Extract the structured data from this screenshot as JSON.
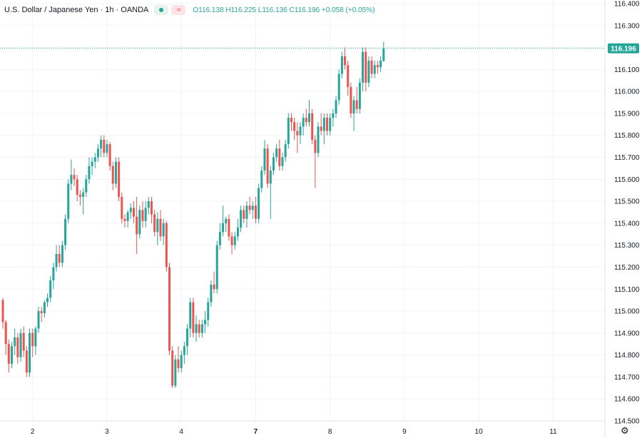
{
  "header": {
    "title": "U.S. Dollar / Japanese Yen · 1h · OANDA",
    "status_icon": "green-dot-icon",
    "indicator_icon": "wave-icon",
    "ohlc_text": "O116.138 H116.225 L116.136 C116.196 +0.058 (+0.05%)"
  },
  "chart_data": {
    "type": "candlestick",
    "symbol": "U.S. Dollar / Japanese Yen",
    "interval": "1h",
    "source": "OANDA",
    "ylim": [
      114.5,
      116.4
    ],
    "y_ticks": [
      "116.400",
      "116.300",
      "116.200",
      "116.100",
      "116.000",
      "115.900",
      "115.800",
      "115.700",
      "115.600",
      "115.500",
      "115.400",
      "115.300",
      "115.200",
      "115.100",
      "115.000",
      "114.900",
      "114.800",
      "114.700",
      "114.600",
      "114.500"
    ],
    "x_ticks": [
      {
        "label": "2",
        "index": 10,
        "bold": false
      },
      {
        "label": "3",
        "index": 35,
        "bold": false
      },
      {
        "label": "4",
        "index": 60,
        "bold": false
      },
      {
        "label": "7",
        "index": 85,
        "bold": true
      },
      {
        "label": "8",
        "index": 110,
        "bold": false
      },
      {
        "label": "9",
        "index": 135,
        "bold": false
      },
      {
        "label": "10",
        "index": 160,
        "bold": false
      },
      {
        "label": "11",
        "index": 185,
        "bold": false
      }
    ],
    "last_price": 116.196,
    "last_price_label": "116.196",
    "colors": {
      "up": "#26a69a",
      "down": "#ef5350",
      "grid": "#f0f3fa",
      "text": "#131722",
      "price_line": "#26a69a"
    },
    "candles": [
      [
        115.05,
        115.06,
        114.92,
        114.95
      ],
      [
        114.95,
        114.96,
        114.8,
        114.85
      ],
      [
        114.85,
        114.87,
        114.72,
        114.76
      ],
      [
        114.76,
        114.86,
        114.74,
        114.84
      ],
      [
        114.84,
        114.92,
        114.8,
        114.88
      ],
      [
        114.88,
        114.9,
        114.76,
        114.79
      ],
      [
        114.79,
        114.92,
        114.77,
        114.9
      ],
      [
        114.9,
        114.93,
        114.79,
        114.82
      ],
      [
        114.82,
        114.84,
        114.7,
        114.72
      ],
      [
        114.72,
        114.92,
        114.7,
        114.9
      ],
      [
        114.9,
        114.92,
        114.79,
        114.84
      ],
      [
        114.84,
        114.93,
        114.8,
        114.92
      ],
      [
        114.92,
        115.02,
        114.9,
        115.0
      ],
      [
        115.0,
        115.02,
        114.95,
        114.99
      ],
      [
        114.99,
        115.05,
        114.97,
        115.04
      ],
      [
        115.04,
        115.08,
        115.02,
        115.06
      ],
      [
        115.06,
        115.16,
        115.04,
        115.14
      ],
      [
        115.14,
        115.22,
        115.1,
        115.2
      ],
      [
        115.2,
        115.3,
        115.18,
        115.26
      ],
      [
        115.26,
        115.3,
        115.2,
        115.22
      ],
      [
        115.22,
        115.32,
        115.2,
        115.3
      ],
      [
        115.3,
        115.44,
        115.28,
        115.42
      ],
      [
        115.42,
        115.6,
        115.4,
        115.58
      ],
      [
        115.58,
        115.69,
        115.55,
        115.62
      ],
      [
        115.62,
        115.65,
        115.57,
        115.6
      ],
      [
        115.6,
        115.62,
        115.5,
        115.53
      ],
      [
        115.53,
        115.55,
        115.48,
        115.52
      ],
      [
        115.52,
        115.56,
        115.44,
        115.54
      ],
      [
        115.54,
        115.62,
        115.52,
        115.6
      ],
      [
        115.6,
        115.7,
        115.58,
        115.66
      ],
      [
        115.66,
        115.7,
        115.62,
        115.68
      ],
      [
        115.68,
        115.72,
        115.65,
        115.7
      ],
      [
        115.7,
        115.76,
        115.68,
        115.74
      ],
      [
        115.74,
        115.8,
        115.7,
        115.78
      ],
      [
        115.78,
        115.8,
        115.7,
        115.72
      ],
      [
        115.72,
        115.78,
        115.7,
        115.76
      ],
      [
        115.76,
        115.77,
        115.64,
        115.66
      ],
      [
        115.66,
        115.68,
        115.55,
        115.58
      ],
      [
        115.58,
        115.7,
        115.56,
        115.68
      ],
      [
        115.68,
        115.7,
        115.5,
        115.52
      ],
      [
        115.52,
        115.54,
        115.4,
        115.42
      ],
      [
        115.42,
        115.44,
        115.38,
        115.41
      ],
      [
        115.41,
        115.46,
        115.38,
        115.45
      ],
      [
        115.45,
        115.49,
        115.42,
        115.47
      ],
      [
        115.47,
        115.5,
        115.4,
        115.43
      ],
      [
        115.43,
        115.52,
        115.26,
        115.35
      ],
      [
        115.35,
        115.48,
        115.33,
        115.46
      ],
      [
        115.46,
        115.5,
        115.38,
        115.41
      ],
      [
        115.41,
        115.5,
        115.38,
        115.47
      ],
      [
        115.47,
        115.52,
        115.44,
        115.5
      ],
      [
        115.5,
        115.52,
        115.4,
        115.44
      ],
      [
        115.44,
        115.46,
        115.34,
        115.36
      ],
      [
        115.36,
        115.45,
        115.3,
        115.42
      ],
      [
        115.42,
        115.46,
        115.32,
        115.34
      ],
      [
        115.34,
        115.42,
        115.3,
        115.4
      ],
      [
        115.4,
        115.41,
        115.18,
        115.2
      ],
      [
        115.2,
        115.22,
        114.8,
        114.82
      ],
      [
        114.82,
        114.84,
        114.65,
        114.66
      ],
      [
        114.66,
        114.8,
        114.65,
        114.78
      ],
      [
        114.78,
        114.84,
        114.72,
        114.74
      ],
      [
        114.74,
        114.82,
        114.72,
        114.8
      ],
      [
        114.8,
        114.86,
        114.76,
        114.84
      ],
      [
        114.84,
        114.94,
        114.8,
        114.92
      ],
      [
        114.92,
        115.06,
        114.88,
        115.04
      ],
      [
        115.04,
        115.06,
        114.88,
        114.9
      ],
      [
        114.9,
        114.98,
        114.86,
        114.94
      ],
      [
        114.94,
        114.96,
        114.88,
        114.9
      ],
      [
        114.9,
        114.96,
        114.88,
        114.94
      ],
      [
        114.94,
        115.0,
        114.9,
        114.96
      ],
      [
        114.96,
        115.06,
        114.93,
        115.04
      ],
      [
        115.04,
        115.14,
        115.02,
        115.12
      ],
      [
        115.12,
        115.18,
        115.08,
        115.1
      ],
      [
        115.1,
        115.32,
        115.08,
        115.3
      ],
      [
        115.3,
        115.4,
        115.28,
        115.36
      ],
      [
        115.36,
        115.48,
        115.34,
        115.4
      ],
      [
        115.4,
        115.43,
        115.36,
        115.42
      ],
      [
        115.42,
        115.44,
        115.32,
        115.34
      ],
      [
        115.34,
        115.36,
        115.26,
        115.3
      ],
      [
        115.3,
        115.36,
        115.28,
        115.34
      ],
      [
        115.34,
        115.42,
        115.32,
        115.38
      ],
      [
        115.38,
        115.48,
        115.36,
        115.46
      ],
      [
        115.46,
        115.48,
        115.4,
        115.42
      ],
      [
        115.42,
        115.5,
        115.38,
        115.48
      ],
      [
        115.48,
        115.52,
        115.44,
        115.46
      ],
      [
        115.46,
        115.5,
        115.42,
        115.48
      ],
      [
        115.48,
        115.52,
        115.4,
        115.42
      ],
      [
        115.42,
        115.58,
        115.4,
        115.56
      ],
      [
        115.56,
        115.66,
        115.54,
        115.64
      ],
      [
        115.64,
        115.78,
        115.62,
        115.74
      ],
      [
        115.74,
        115.76,
        115.56,
        115.58
      ],
      [
        115.58,
        115.66,
        115.42,
        115.64
      ],
      [
        115.64,
        115.72,
        115.62,
        115.7
      ],
      [
        115.7,
        115.76,
        115.68,
        115.74
      ],
      [
        115.74,
        115.78,
        115.64,
        115.66
      ],
      [
        115.66,
        115.72,
        115.64,
        115.7
      ],
      [
        115.7,
        115.78,
        115.68,
        115.76
      ],
      [
        115.76,
        115.9,
        115.74,
        115.88
      ],
      [
        115.88,
        115.9,
        115.82,
        115.86
      ],
      [
        115.86,
        115.88,
        115.78,
        115.82
      ],
      [
        115.82,
        115.86,
        115.72,
        115.8
      ],
      [
        115.8,
        115.86,
        115.76,
        115.84
      ],
      [
        115.84,
        115.9,
        115.8,
        115.88
      ],
      [
        115.88,
        115.92,
        115.84,
        115.86
      ],
      [
        115.86,
        115.96,
        115.84,
        115.9
      ],
      [
        115.9,
        115.92,
        115.76,
        115.78
      ],
      [
        115.78,
        115.8,
        115.56,
        115.72
      ],
      [
        115.72,
        115.86,
        115.7,
        115.84
      ],
      [
        115.84,
        115.9,
        115.8,
        115.82
      ],
      [
        115.82,
        115.9,
        115.76,
        115.88
      ],
      [
        115.88,
        115.9,
        115.8,
        115.82
      ],
      [
        115.82,
        115.9,
        115.8,
        115.88
      ],
      [
        115.88,
        115.92,
        115.84,
        115.9
      ],
      [
        115.9,
        115.98,
        115.88,
        115.96
      ],
      [
        115.96,
        116.1,
        115.94,
        116.08
      ],
      [
        116.08,
        116.18,
        116.06,
        116.16
      ],
      [
        116.16,
        116.2,
        116.1,
        116.12
      ],
      [
        116.12,
        116.14,
        115.98,
        116.02
      ],
      [
        116.02,
        116.04,
        115.88,
        115.9
      ],
      [
        115.9,
        115.98,
        115.82,
        115.96
      ],
      [
        115.96,
        116.02,
        115.9,
        115.92
      ],
      [
        115.92,
        116.06,
        115.9,
        116.04
      ],
      [
        116.04,
        116.2,
        116.0,
        116.18
      ],
      [
        116.18,
        116.2,
        116.0,
        116.04
      ],
      [
        116.04,
        116.16,
        116.02,
        116.14
      ],
      [
        116.14,
        116.16,
        116.06,
        116.08
      ],
      [
        116.08,
        116.14,
        116.06,
        116.12
      ],
      [
        116.12,
        116.14,
        116.08,
        116.11
      ],
      [
        116.11,
        116.16,
        116.09,
        116.14
      ],
      [
        116.138,
        116.225,
        116.136,
        116.196
      ]
    ]
  }
}
